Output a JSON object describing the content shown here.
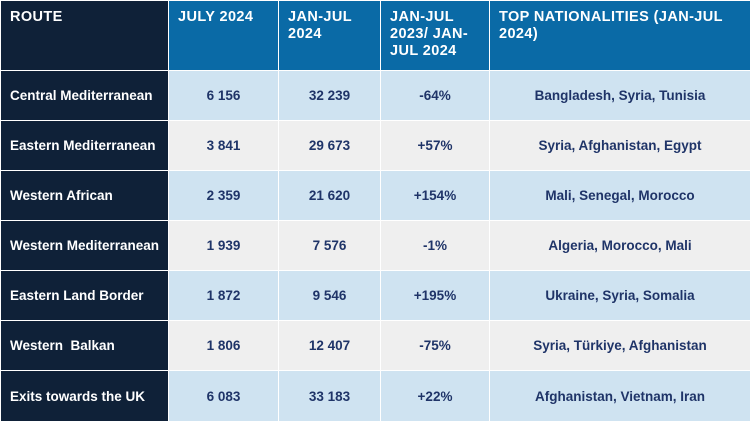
{
  "header": {
    "route": "ROUTE",
    "july_2024": "JULY 2024",
    "jan_jul_2024": "JAN-JUL 2024",
    "change": "JAN-JUL 2023/ JAN-JUL 2024",
    "top_nationalities": "TOP NATIONALITIES (JAN-JUL 2024)"
  },
  "rows": [
    {
      "route": "Central Mediterranean",
      "july_2024": "6 156",
      "jan_jul_2024": "32 239",
      "change": "-64%",
      "nationalities": "Bangladesh, Syria, Tunisia"
    },
    {
      "route": "Eastern Mediterranean",
      "july_2024": "3 841",
      "jan_jul_2024": "29 673",
      "change": "+57%",
      "nationalities": "Syria, Afghanistan, Egypt"
    },
    {
      "route": "Western African",
      "july_2024": "2 359",
      "jan_jul_2024": "21 620",
      "change": "+154%",
      "nationalities": "Mali, Senegal, Morocco"
    },
    {
      "route": "Western Mediterranean",
      "july_2024": "1 939",
      "jan_jul_2024": "7 576",
      "change": "-1%",
      "nationalities": "Algeria, Morocco, Mali"
    },
    {
      "route": "Eastern Land Border",
      "july_2024": "1 872",
      "jan_jul_2024": "9 546",
      "change": "+195%",
      "nationalities": "Ukraine, Syria, Somalia"
    },
    {
      "route": "Western  Balkan",
      "july_2024": "1 806",
      "jan_jul_2024": "12 407",
      "change": "-75%",
      "nationalities": "Syria, Türkiye, Afghanistan"
    },
    {
      "route": "Exits towards the UK",
      "july_2024": "6 083",
      "jan_jul_2024": "33 183",
      "change": "+22%",
      "nationalities": "Afghanistan, Vietnam, Iran"
    }
  ],
  "colors": {
    "route_column": "#0f2138",
    "header": "#0a6aa6",
    "row_blue": "#cfe3f1",
    "row_grey": "#efefef",
    "value_text": "#1f3468"
  }
}
